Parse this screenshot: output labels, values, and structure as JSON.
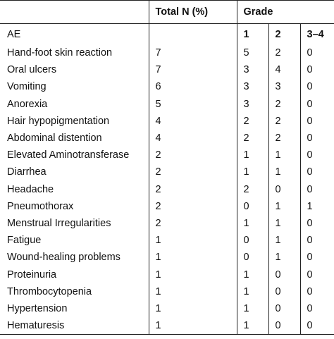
{
  "header": {
    "col1": "",
    "total": "Total N (%)",
    "grade": "Grade"
  },
  "subheader": {
    "ae": "AE",
    "total": "",
    "g1": "1",
    "g2": "2",
    "g34": "3–4"
  },
  "rows": [
    {
      "ae": "Hand-foot skin reaction",
      "total": "7",
      "g1": "5",
      "g2": "2",
      "g34": "0"
    },
    {
      "ae": "Oral ulcers",
      "total": "7",
      "g1": "3",
      "g2": "4",
      "g34": "0"
    },
    {
      "ae": "Vomiting",
      "total": "6",
      "g1": "3",
      "g2": "3",
      "g34": "0"
    },
    {
      "ae": "Anorexia",
      "total": "5",
      "g1": "3",
      "g2": "2",
      "g34": "0"
    },
    {
      "ae": "Hair hypopigmentation",
      "total": "4",
      "g1": "2",
      "g2": "2",
      "g34": "0"
    },
    {
      "ae": "Abdominal distention",
      "total": "4",
      "g1": "2",
      "g2": "2",
      "g34": "0"
    },
    {
      "ae": "Elevated Aminotransferase",
      "total": "2",
      "g1": "1",
      "g2": "1",
      "g34": "0"
    },
    {
      "ae": "Diarrhea",
      "total": "2",
      "g1": "1",
      "g2": "1",
      "g34": "0"
    },
    {
      "ae": "Headache",
      "total": "2",
      "g1": "2",
      "g2": "0",
      "g34": "0"
    },
    {
      "ae": "Pneumothorax",
      "total": "2",
      "g1": "0",
      "g2": "1",
      "g34": "1"
    },
    {
      "ae": "Menstrual Irregularities",
      "total": "2",
      "g1": "1",
      "g2": "1",
      "g34": "0"
    },
    {
      "ae": "Fatigue",
      "total": "1",
      "g1": "0",
      "g2": "1",
      "g34": "0"
    },
    {
      "ae": "Wound-healing problems",
      "total": "1",
      "g1": "0",
      "g2": "1",
      "g34": "0"
    },
    {
      "ae": "Proteinuria",
      "total": "1",
      "g1": "1",
      "g2": "0",
      "g34": "0"
    },
    {
      "ae": "Thrombocytopenia",
      "total": "1",
      "g1": "1",
      "g2": "0",
      "g34": "0"
    },
    {
      "ae": "Hypertension",
      "total": "1",
      "g1": "1",
      "g2": "0",
      "g34": "0"
    },
    {
      "ae": "Hematuresis",
      "total": "1",
      "g1": "1",
      "g2": "0",
      "g34": "0"
    }
  ]
}
